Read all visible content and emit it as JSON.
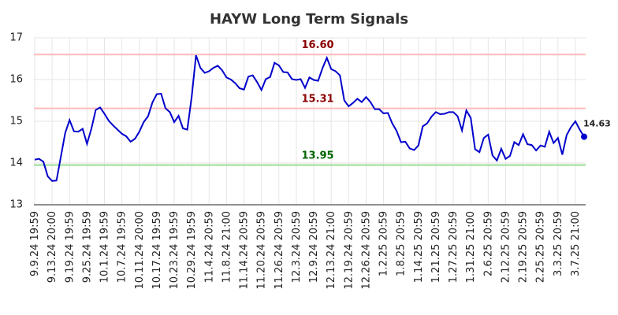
{
  "chart_data": {
    "type": "line",
    "title": "HAYW Long Term Signals",
    "categories": [
      "9.9.24 19:59",
      null,
      null,
      null,
      "9.13.24 20:00",
      null,
      null,
      null,
      "9.19.24 19:59",
      null,
      null,
      null,
      "9.25.24 19:59",
      null,
      null,
      null,
      "10.1.24 19:59",
      null,
      null,
      null,
      "10.7.24 19:59",
      null,
      null,
      null,
      "10.11.24 20:00",
      null,
      null,
      null,
      "10.17.24 19:59",
      null,
      null,
      null,
      "10.23.24 19:59",
      null,
      null,
      null,
      "10.29.24 19:59",
      null,
      null,
      null,
      "11.4.24 20:59",
      null,
      null,
      null,
      "11.8.24 21:00",
      null,
      null,
      null,
      "11.14.24 20:59",
      null,
      null,
      null,
      "11.20.24 20:59",
      null,
      null,
      null,
      "11.26.24 20:59",
      null,
      null,
      null,
      "12.3.24 20:59",
      null,
      null,
      null,
      "12.9.24 20:59",
      null,
      null,
      null,
      "12.13.24 21:00",
      null,
      null,
      null,
      "12.19.24 20:59",
      null,
      null,
      null,
      "12.26.24 20:59",
      null,
      null,
      null,
      "1.2.25 20:59",
      null,
      null,
      null,
      "1.8.25 20:59",
      null,
      null,
      null,
      "1.14.25 20:59",
      null,
      null,
      null,
      "1.21.25 20:59",
      null,
      null,
      null,
      "1.27.25 20:59",
      null,
      null,
      null,
      "1.31.25 21:00",
      null,
      null,
      null,
      "2.6.25 20:59",
      null,
      null,
      null,
      "2.12.25 20:59",
      null,
      null,
      null,
      "2.19.25 20:59",
      null,
      null,
      null,
      "2.25.25 20:59",
      null,
      null,
      null,
      "3.3.25 20:59",
      null,
      null,
      null,
      "3.7.25 21:00",
      null,
      null
    ],
    "series": [
      {
        "color": "#0000cc",
        "values": [
          14.08,
          14.1,
          14.03,
          13.68,
          13.57,
          13.58,
          14.15,
          14.72,
          15.03,
          14.76,
          14.75,
          14.82,
          14.46,
          14.82,
          15.27,
          15.33,
          15.18,
          15.01,
          14.9,
          14.8,
          14.7,
          14.64,
          14.51,
          14.58,
          14.75,
          14.98,
          15.12,
          15.45,
          15.65,
          15.66,
          15.31,
          15.22,
          14.98,
          15.13,
          14.83,
          14.8,
          15.58,
          16.58,
          16.28,
          16.16,
          16.2,
          16.28,
          16.33,
          16.22,
          16.05,
          16.0,
          15.91,
          15.79,
          15.76,
          16.07,
          16.1,
          15.94,
          15.75,
          16.01,
          16.06,
          16.4,
          16.34,
          16.18,
          16.17,
          16.01,
          15.99,
          16.01,
          15.8,
          16.05,
          15.99,
          15.97,
          16.27,
          16.52,
          16.25,
          16.2,
          16.1,
          15.5,
          15.36,
          15.44,
          15.54,
          15.46,
          15.58,
          15.46,
          15.29,
          15.29,
          15.19,
          15.2,
          14.95,
          14.77,
          14.5,
          14.51,
          14.35,
          14.31,
          14.42,
          14.88,
          14.95,
          15.11,
          15.22,
          15.17,
          15.18,
          15.22,
          15.22,
          15.12,
          14.78,
          15.26,
          15.08,
          14.33,
          14.26,
          14.6,
          14.68,
          14.18,
          14.06,
          14.34,
          14.1,
          14.17,
          14.5,
          14.43,
          14.69,
          14.45,
          14.43,
          14.3,
          14.42,
          14.39,
          14.75,
          14.48,
          14.6,
          14.2,
          14.67,
          14.86,
          15.0,
          14.8,
          14.63
        ]
      }
    ],
    "reference_lines": [
      {
        "value": 16.6,
        "label": "16.60",
        "color": "#ffbbbb",
        "label_color": "#8b0000"
      },
      {
        "value": 15.31,
        "label": "15.31",
        "color": "#ffbbbb",
        "label_color": "#8b0000"
      },
      {
        "value": 13.95,
        "label": "13.95",
        "color": "#99dd99",
        "label_color": "#006400"
      }
    ],
    "ylim": [
      13,
      17
    ],
    "yticks": [
      13,
      14,
      15,
      16,
      17
    ],
    "grid": true
  }
}
